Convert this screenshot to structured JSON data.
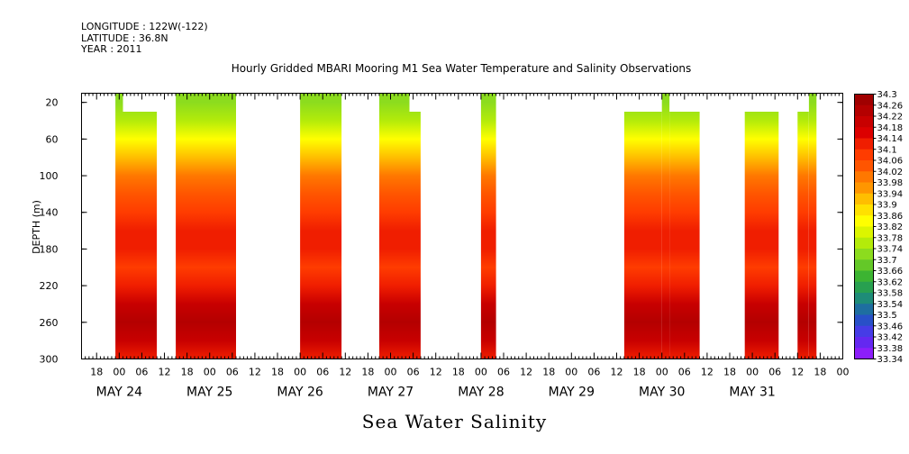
{
  "header": {
    "longitude": "LONGITUDE : 122W(-122)",
    "latitude": "LATITUDE : 36.8N",
    "year": "YEAR : 2011"
  },
  "footer_label": "Sea Water Salinity",
  "chart_data": {
    "type": "heatmap",
    "title": "Hourly Gridded MBARI Mooring M1 Sea Water Temperature and Salinity Observations",
    "ylabel": "DEPTH (m)",
    "xlabel": "",
    "y_reversed": true,
    "ylim": [
      300,
      10
    ],
    "y_ticks": [
      20,
      60,
      100,
      140,
      180,
      220,
      260,
      300
    ],
    "x_range_hours": [
      "2011-05-23 14:00",
      "2011-06-01 00:00"
    ],
    "x_hour_ticks": [
      "18",
      "00",
      "06",
      "12",
      "18",
      "00",
      "06",
      "12",
      "18",
      "00",
      "06",
      "12",
      "18",
      "00",
      "06",
      "12",
      "18",
      "00",
      "06",
      "12",
      "18",
      "00",
      "06",
      "12",
      "18",
      "00",
      "06",
      "12",
      "18",
      "00",
      "06",
      "12",
      "18",
      "00",
      "06",
      "12"
    ],
    "x_date_labels": [
      "MAY 24",
      "MAY 25",
      "MAY 26",
      "MAY 27",
      "MAY 28",
      "MAY 29",
      "MAY 30",
      "MAY 31"
    ],
    "colorbar_ticks": [
      "34.3",
      "34.26",
      "34.22",
      "34.18",
      "34.14",
      "34.1",
      "34.06",
      "34.02",
      "33.98",
      "33.94",
      "33.9",
      "33.86",
      "33.82",
      "33.78",
      "33.74",
      "33.7",
      "33.66",
      "33.62",
      "33.58",
      "33.54",
      "33.5",
      "33.46",
      "33.42",
      "33.38",
      "33.34"
    ],
    "colorbar_colors": [
      "#a00000",
      "#b40000",
      "#c80000",
      "#dc0000",
      "#f01e00",
      "#ff3c00",
      "#ff5500",
      "#ff7800",
      "#ff9600",
      "#ffbe00",
      "#ffe100",
      "#ffff00",
      "#dcf500",
      "#b4eb0a",
      "#8cdc1e",
      "#64c828",
      "#3cb432",
      "#28a050",
      "#1e8c78",
      "#1e6ea0",
      "#2850c8",
      "#463ce6",
      "#6428f0",
      "#8c1efa",
      "#b41eff"
    ],
    "depth_profile": [
      {
        "depth": 20,
        "salinity": 33.74
      },
      {
        "depth": 40,
        "salinity": 33.8
      },
      {
        "depth": 60,
        "salinity": 33.86
      },
      {
        "depth": 80,
        "salinity": 33.94
      },
      {
        "depth": 100,
        "salinity": 34.0
      },
      {
        "depth": 120,
        "salinity": 34.06
      },
      {
        "depth": 140,
        "salinity": 34.1
      },
      {
        "depth": 160,
        "salinity": 34.14
      },
      {
        "depth": 180,
        "salinity": 34.14
      },
      {
        "depth": 200,
        "salinity": 34.12
      },
      {
        "depth": 220,
        "salinity": 34.16
      },
      {
        "depth": 240,
        "salinity": 34.2
      },
      {
        "depth": 260,
        "salinity": 34.26
      },
      {
        "depth": 280,
        "salinity": 34.2
      },
      {
        "depth": 300,
        "salinity": 34.16
      }
    ],
    "data_segments": [
      {
        "start": "2011-05-23 23:00",
        "end": "2011-05-24 01:00",
        "top_depth": 20
      },
      {
        "start": "2011-05-24 01:00",
        "end": "2011-05-24 10:00",
        "top_depth": 40
      },
      {
        "start": "2011-05-24 15:00",
        "end": "2011-05-25 07:00",
        "top_depth": 20
      },
      {
        "start": "2011-05-26 00:00",
        "end": "2011-05-26 11:00",
        "top_depth": 20
      },
      {
        "start": "2011-05-26 21:00",
        "end": "2011-05-27 05:00",
        "top_depth": 20
      },
      {
        "start": "2011-05-27 05:00",
        "end": "2011-05-27 08:00",
        "top_depth": 40
      },
      {
        "start": "2011-05-28 00:00",
        "end": "2011-05-28 04:00",
        "top_depth": 20
      },
      {
        "start": "2011-05-29 14:00",
        "end": "2011-05-30 00:00",
        "top_depth": 40
      },
      {
        "start": "2011-05-30 00:00",
        "end": "2011-05-30 02:00",
        "top_depth": 20
      },
      {
        "start": "2011-05-30 02:00",
        "end": "2011-05-30 10:00",
        "top_depth": 40
      },
      {
        "start": "2011-05-30 22:00",
        "end": "2011-05-31 07:00",
        "top_depth": 40
      },
      {
        "start": "2011-05-31 12:00",
        "end": "2011-05-31 15:00",
        "top_depth": 40
      },
      {
        "start": "2011-05-31 15:00",
        "end": "2011-05-31 17:00",
        "top_depth": 20
      }
    ]
  }
}
